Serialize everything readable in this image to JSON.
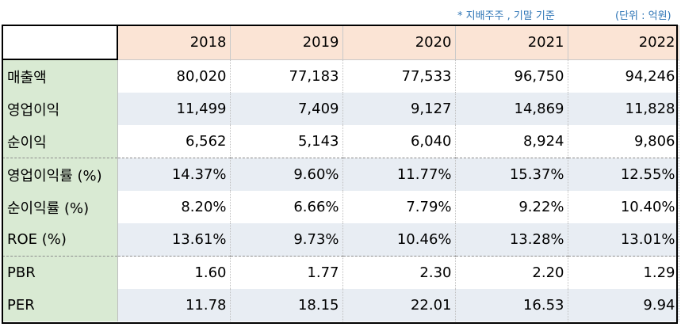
{
  "notes": {
    "holder": "* 지배주주 , 기말 기준",
    "unit": "(단위 : 억원)"
  },
  "table": {
    "years": [
      "2018",
      "2019",
      "2020",
      "2021",
      "2022"
    ],
    "rows": [
      {
        "label": "매출액",
        "values": [
          "80,020",
          "77,183",
          "77,533",
          "96,750",
          "94,246"
        ]
      },
      {
        "label": "영업이익",
        "values": [
          "11,499",
          "7,409",
          "9,127",
          "14,869",
          "11,828"
        ]
      },
      {
        "label": "순이익",
        "values": [
          "6,562",
          "5,143",
          "6,040",
          "8,924",
          "9,806"
        ]
      },
      {
        "label": "영업이익률 (%)",
        "values": [
          "14.37%",
          "9.60%",
          "11.77%",
          "15.37%",
          "12.55%"
        ]
      },
      {
        "label": "순이익률 (%)",
        "values": [
          "8.20%",
          "6.66%",
          "7.79%",
          "9.22%",
          "10.40%"
        ]
      },
      {
        "label": "ROE (%)",
        "values": [
          "13.61%",
          "9.73%",
          "10.46%",
          "13.28%",
          "13.01%"
        ]
      },
      {
        "label": "PBR",
        "values": [
          "1.60",
          "1.77",
          "2.30",
          "2.20",
          "1.29"
        ]
      },
      {
        "label": "PER",
        "values": [
          "11.78",
          "18.15",
          "22.01",
          "16.53",
          "9.94"
        ]
      }
    ]
  }
}
